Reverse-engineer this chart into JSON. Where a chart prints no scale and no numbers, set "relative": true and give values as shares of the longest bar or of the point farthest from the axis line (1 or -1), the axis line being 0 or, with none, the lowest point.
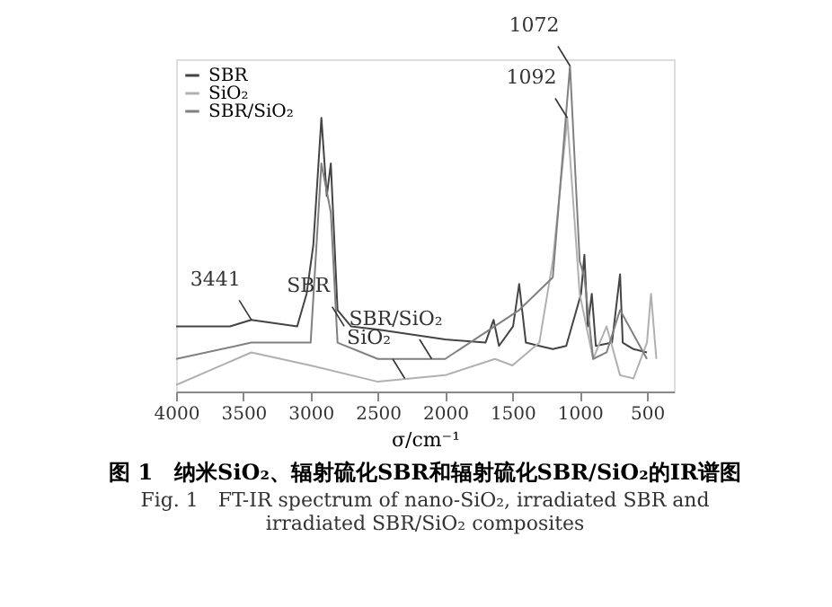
{
  "chart_data": {
    "type": "line",
    "title": "图 1　纳米SiO₂、辐射硫化SBR和辐射硫化SBR/SiO₂的IR谱图",
    "subtitle": "Fig. 1　FT-IR spectrum of nano-SiO₂, irradiated SBR and irradiated SBR/SiO₂ composites",
    "xlabel": "σ/cm⁻¹",
    "relative": true,
    "xlim": [
      4000,
      300
    ],
    "xticks": [
      4000,
      3500,
      3000,
      2500,
      2000,
      1500,
      1000,
      500
    ],
    "grid": false,
    "legend": "top left",
    "tick_labels": "x",
    "series": [
      {
        "name": "SBR",
        "color": "#444444",
        "x": [
          4000,
          3600,
          3441,
          3100,
          3030,
          2980,
          2920,
          2880,
          2850,
          2800,
          2700,
          2500,
          2000,
          1700,
          1640,
          1600,
          1495,
          1450,
          1400,
          1300,
          1200,
          1100,
          990,
          965,
          940,
          910,
          880,
          760,
          700,
          680,
          600,
          500
        ],
        "values": [
          0.2,
          0.2,
          0.22,
          0.2,
          0.3,
          0.45,
          0.84,
          0.6,
          0.7,
          0.25,
          0.2,
          0.19,
          0.16,
          0.15,
          0.22,
          0.14,
          0.2,
          0.33,
          0.15,
          0.14,
          0.13,
          0.14,
          0.3,
          0.42,
          0.2,
          0.3,
          0.14,
          0.15,
          0.36,
          0.15,
          0.13,
          0.12
        ]
      },
      {
        "name": "SiO₂",
        "color": "#b0b0b0",
        "x": [
          4000,
          3441,
          3000,
          2500,
          2000,
          1630,
          1500,
          1300,
          1200,
          1092,
          1000,
          900,
          800,
          700,
          600,
          500,
          470,
          430
        ],
        "values": [
          0.02,
          0.12,
          0.08,
          0.03,
          0.05,
          0.1,
          0.08,
          0.15,
          0.4,
          0.84,
          0.3,
          0.1,
          0.2,
          0.05,
          0.04,
          0.15,
          0.3,
          0.1
        ]
      },
      {
        "name": "SBR/SiO₂",
        "color": "#808080",
        "x": [
          4000,
          3441,
          3000,
          2920,
          2850,
          2800,
          2500,
          2000,
          1450,
          1200,
          1072,
          1000,
          965,
          900,
          800,
          700,
          500
        ],
        "values": [
          0.1,
          0.15,
          0.15,
          0.7,
          0.55,
          0.15,
          0.1,
          0.1,
          0.25,
          0.35,
          1.0,
          0.4,
          0.35,
          0.1,
          0.12,
          0.25,
          0.1
        ]
      }
    ],
    "annotations": [
      {
        "text": "3441",
        "x": 3441,
        "y": 0.22
      },
      {
        "text": "1092",
        "x": 1092,
        "y": 0.84
      },
      {
        "text": "1072",
        "x": 1072,
        "y": 1.0
      },
      {
        "text": "SBR",
        "x": 2750,
        "y": 0.2
      },
      {
        "text": "SiO₂",
        "x": 2300,
        "y": 0.04
      },
      {
        "text": "SBR/SiO₂",
        "x": 2100,
        "y": 0.1
      }
    ]
  }
}
